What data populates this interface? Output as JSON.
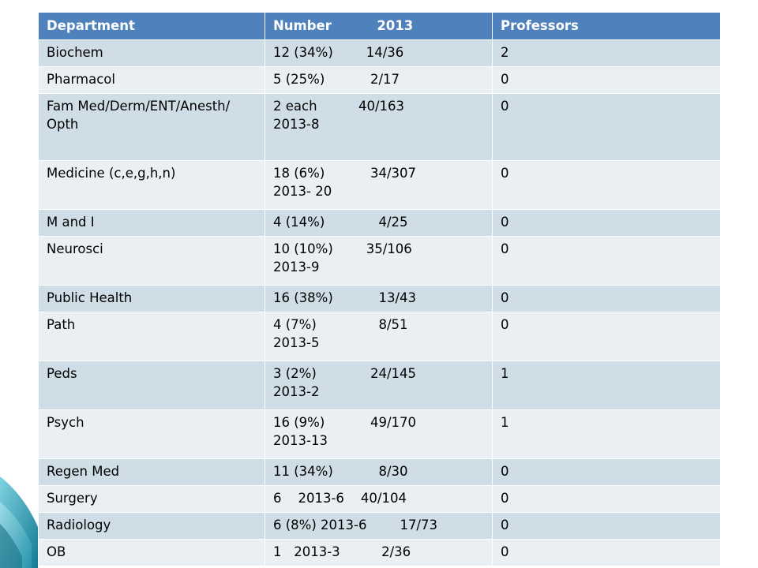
{
  "table": {
    "headers": [
      "Department",
      "Number          2013",
      "Professors"
    ],
    "rows": [
      {
        "dept": "Biochem",
        "number": [
          "12 (34%)        14/36"
        ],
        "prof": "2"
      },
      {
        "dept": "Pharmacol",
        "number": [
          "5 (25%)           2/17"
        ],
        "prof": "0"
      },
      {
        "dept": "Fam Med/Derm/ENT/Anesth/ Opth",
        "number": [
          "2 each          40/163",
          "2013-8"
        ],
        "prof": "0"
      },
      {
        "dept": "Medicine (c,e,g,h,n)",
        "number": [
          "18 (6%)           34/307",
          "2013- 20"
        ],
        "prof": "0"
      },
      {
        "dept": "M and I",
        "number": [
          "4 (14%)             4/25"
        ],
        "prof": "0"
      },
      {
        "dept": "Neurosci",
        "number": [
          "10 (10%)        35/106",
          "2013-9"
        ],
        "prof": "0"
      },
      {
        "dept": "Public Health",
        "number": [
          "16 (38%)           13/43"
        ],
        "prof": "0"
      },
      {
        "dept": "Path",
        "number": [
          "4 (7%)               8/51",
          "2013-5"
        ],
        "prof": "0"
      },
      {
        "dept": "Peds",
        "number": [
          "3 (2%)             24/145",
          "2013-2"
        ],
        "prof": "1"
      },
      {
        "dept": "Psych",
        "number": [
          "16 (9%)           49/170",
          "2013-13"
        ],
        "prof": "1"
      },
      {
        "dept": "Regen Med",
        "number": [
          "11 (34%)           8/30"
        ],
        "prof": "0"
      },
      {
        "dept": "Surgery",
        "number": [
          "6    2013-6    40/104"
        ],
        "prof": "0"
      },
      {
        "dept": "Radiology",
        "number": [
          "6 (8%) 2013-6        17/73"
        ],
        "prof": "0"
      },
      {
        "dept": "OB",
        "number": [
          "1   2013-3          2/36"
        ],
        "prof": "0"
      }
    ]
  },
  "colors": {
    "header_bg": "#4f81bd",
    "row_odd": "#cfdde6",
    "row_even": "#e9eff3",
    "accent": "#1e8fa8"
  }
}
